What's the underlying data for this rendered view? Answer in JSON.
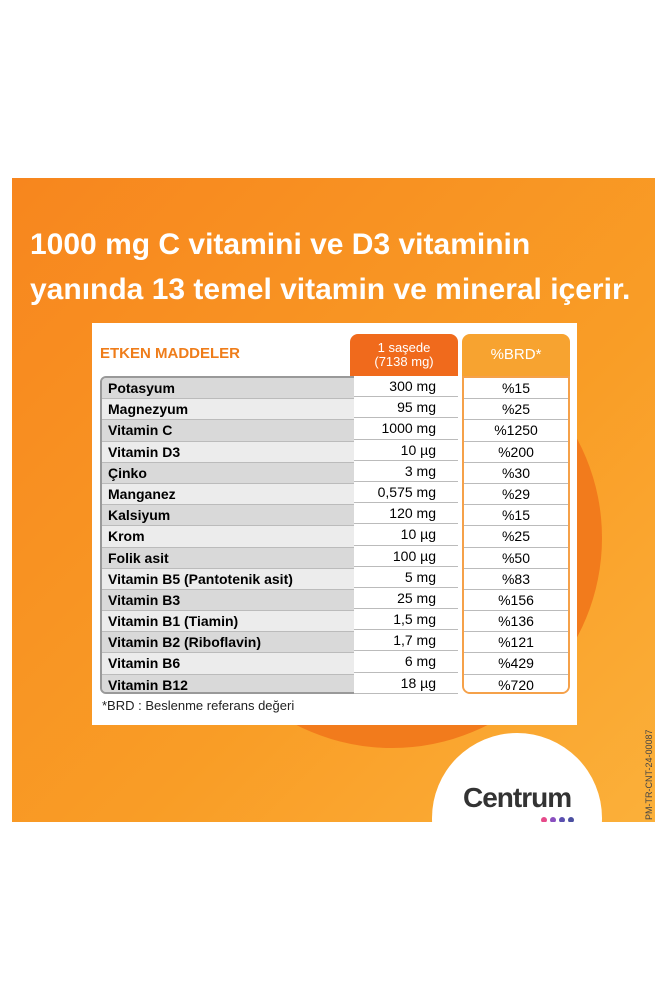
{
  "headline": [
    "1000 mg C vitamini ve D3 vitaminin",
    "yanında 13 temel vitamin ve mineral içerir."
  ],
  "table": {
    "title": "ETKEN MADDELER",
    "columns": [
      "1 saşede\n(7138 mg)",
      "%BRD*"
    ],
    "rows": [
      [
        "Potasyum",
        "300 mg",
        "%15"
      ],
      [
        "Magnezyum",
        "95 mg",
        "%25"
      ],
      [
        "Vitamin C",
        "1000 mg",
        "%1250"
      ],
      [
        "Vitamin D3",
        "10 µg",
        "%200"
      ],
      [
        "Çinko",
        "3 mg",
        "%30"
      ],
      [
        "Manganez",
        "0,575 mg",
        "%29"
      ],
      [
        "Kalsiyum",
        "120 mg",
        "%15"
      ],
      [
        "Krom",
        "10 µg",
        "%25"
      ],
      [
        "Folik asit",
        "100 µg",
        "%50"
      ],
      [
        "Vitamin B5 (Pantotenik asit)",
        "5 mg",
        "%83"
      ],
      [
        "Vitamin B3",
        "25 mg",
        "%156"
      ],
      [
        "Vitamin B1 (Tiamin)",
        "1,5 mg",
        "%136"
      ],
      [
        "Vitamin B2 (Riboflavin)",
        "1,7 mg",
        "%121"
      ],
      [
        "Vitamin B6",
        "6 mg",
        "%429"
      ],
      [
        "Vitamin B12",
        "18 µg",
        "%720"
      ]
    ],
    "footnote": "*BRD : Beslenme referans değeri"
  },
  "brand": "Centrum",
  "code": "PM-TR-CNT-24-00087"
}
